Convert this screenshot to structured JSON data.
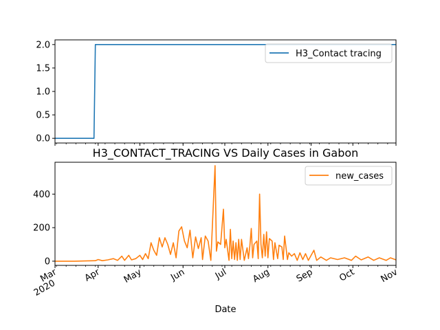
{
  "chart_data": [
    {
      "type": "line",
      "title": "",
      "xlabel": "",
      "ylabel": "",
      "ylim": [
        -0.1,
        2.1
      ],
      "yticks": [
        "0.0",
        "0.5",
        "1.0",
        "1.5",
        "2.0"
      ],
      "grid": false,
      "legend_position": "top-right",
      "colors": {
        "line": "#1f77b4"
      },
      "series": [
        {
          "name": "H3_Contact tracing",
          "step": true,
          "points": [
            {
              "x": "2020-03-01",
              "y": 0
            },
            {
              "x": "2020-03-29",
              "y": 0
            },
            {
              "x": "2020-03-30",
              "y": 2
            },
            {
              "x": "2020-11-01",
              "y": 2
            }
          ]
        }
      ]
    },
    {
      "type": "line",
      "title": "H3_CONTACT_TRACING VS Daily Cases in Gabon",
      "xlabel": "Date",
      "ylabel": "",
      "ylim": [
        -25,
        590
      ],
      "yticks": [
        "0",
        "200",
        "400"
      ],
      "grid": false,
      "legend_position": "top-right",
      "colors": {
        "line": "#ff7f0e"
      },
      "xticks": [
        {
          "label": "Mar",
          "sublabel": "2020",
          "date": "2020-03-01"
        },
        {
          "label": "Apr",
          "date": "2020-04-01"
        },
        {
          "label": "May",
          "date": "2020-05-01"
        },
        {
          "label": "Jun",
          "date": "2020-06-01"
        },
        {
          "label": "Jul",
          "date": "2020-07-01"
        },
        {
          "label": "Aug",
          "date": "2020-08-01"
        },
        {
          "label": "Sep",
          "date": "2020-09-01"
        },
        {
          "label": "Oct",
          "date": "2020-10-01"
        },
        {
          "label": "Nov",
          "date": "2020-11-01"
        }
      ],
      "series": [
        {
          "name": "new_cases",
          "points": [
            {
              "x": "2020-03-01",
              "y": 0
            },
            {
              "x": "2020-03-15",
              "y": 0
            },
            {
              "x": "2020-03-25",
              "y": 2
            },
            {
              "x": "2020-03-30",
              "y": 3
            },
            {
              "x": "2020-04-01",
              "y": 10
            },
            {
              "x": "2020-04-04",
              "y": 3
            },
            {
              "x": "2020-04-08",
              "y": 8
            },
            {
              "x": "2020-04-12",
              "y": 15
            },
            {
              "x": "2020-04-15",
              "y": 5
            },
            {
              "x": "2020-04-18",
              "y": 30
            },
            {
              "x": "2020-04-20",
              "y": 5
            },
            {
              "x": "2020-04-23",
              "y": 35
            },
            {
              "x": "2020-04-25",
              "y": 8
            },
            {
              "x": "2020-04-28",
              "y": 15
            },
            {
              "x": "2020-05-01",
              "y": 35
            },
            {
              "x": "2020-05-03",
              "y": 10
            },
            {
              "x": "2020-05-05",
              "y": 45
            },
            {
              "x": "2020-05-07",
              "y": 15
            },
            {
              "x": "2020-05-09",
              "y": 110
            },
            {
              "x": "2020-05-11",
              "y": 65
            },
            {
              "x": "2020-05-13",
              "y": 35
            },
            {
              "x": "2020-05-15",
              "y": 140
            },
            {
              "x": "2020-05-17",
              "y": 85
            },
            {
              "x": "2020-05-19",
              "y": 140
            },
            {
              "x": "2020-05-21",
              "y": 100
            },
            {
              "x": "2020-05-23",
              "y": 40
            },
            {
              "x": "2020-05-25",
              "y": 110
            },
            {
              "x": "2020-05-27",
              "y": 20
            },
            {
              "x": "2020-05-29",
              "y": 180
            },
            {
              "x": "2020-05-31",
              "y": 205
            },
            {
              "x": "2020-06-02",
              "y": 120
            },
            {
              "x": "2020-06-04",
              "y": 80
            },
            {
              "x": "2020-06-06",
              "y": 185
            },
            {
              "x": "2020-06-08",
              "y": 20
            },
            {
              "x": "2020-06-10",
              "y": 145
            },
            {
              "x": "2020-06-12",
              "y": 75
            },
            {
              "x": "2020-06-14",
              "y": 140
            },
            {
              "x": "2020-06-15",
              "y": 10
            },
            {
              "x": "2020-06-17",
              "y": 150
            },
            {
              "x": "2020-06-19",
              "y": 120
            },
            {
              "x": "2020-06-21",
              "y": 5
            },
            {
              "x": "2020-06-24",
              "y": 570
            },
            {
              "x": "2020-06-25",
              "y": 60
            },
            {
              "x": "2020-06-26",
              "y": 115
            },
            {
              "x": "2020-06-28",
              "y": 100
            },
            {
              "x": "2020-06-30",
              "y": 310
            },
            {
              "x": "2020-07-01",
              "y": 80
            },
            {
              "x": "2020-07-02",
              "y": 130
            },
            {
              "x": "2020-07-04",
              "y": 5
            },
            {
              "x": "2020-07-05",
              "y": 190
            },
            {
              "x": "2020-07-06",
              "y": 15
            },
            {
              "x": "2020-07-07",
              "y": 120
            },
            {
              "x": "2020-07-08",
              "y": 10
            },
            {
              "x": "2020-07-09",
              "y": 110
            },
            {
              "x": "2020-07-10",
              "y": 5
            },
            {
              "x": "2020-07-11",
              "y": 130
            },
            {
              "x": "2020-07-12",
              "y": 10
            },
            {
              "x": "2020-07-13",
              "y": 130
            },
            {
              "x": "2020-07-15",
              "y": 5
            },
            {
              "x": "2020-07-17",
              "y": 80
            },
            {
              "x": "2020-07-18",
              "y": 15
            },
            {
              "x": "2020-07-19",
              "y": 90
            },
            {
              "x": "2020-07-20",
              "y": 195
            },
            {
              "x": "2020-07-21",
              "y": 20
            },
            {
              "x": "2020-07-22",
              "y": 100
            },
            {
              "x": "2020-07-24",
              "y": 120
            },
            {
              "x": "2020-07-25",
              "y": 15
            },
            {
              "x": "2020-07-26",
              "y": 400
            },
            {
              "x": "2020-07-27",
              "y": 100
            },
            {
              "x": "2020-07-28",
              "y": 20
            },
            {
              "x": "2020-07-29",
              "y": 160
            },
            {
              "x": "2020-07-30",
              "y": 30
            },
            {
              "x": "2020-07-31",
              "y": 175
            },
            {
              "x": "2020-08-01",
              "y": 20
            },
            {
              "x": "2020-08-02",
              "y": 135
            },
            {
              "x": "2020-08-04",
              "y": 120
            },
            {
              "x": "2020-08-05",
              "y": 10
            },
            {
              "x": "2020-08-06",
              "y": 110
            },
            {
              "x": "2020-08-08",
              "y": 15
            },
            {
              "x": "2020-08-09",
              "y": 95
            },
            {
              "x": "2020-08-11",
              "y": 85
            },
            {
              "x": "2020-08-12",
              "y": 10
            },
            {
              "x": "2020-08-13",
              "y": 150
            },
            {
              "x": "2020-08-15",
              "y": 10
            },
            {
              "x": "2020-08-16",
              "y": 50
            },
            {
              "x": "2020-08-18",
              "y": 30
            },
            {
              "x": "2020-08-20",
              "y": 45
            },
            {
              "x": "2020-08-22",
              "y": 5
            },
            {
              "x": "2020-08-24",
              "y": 50
            },
            {
              "x": "2020-08-26",
              "y": 10
            },
            {
              "x": "2020-08-28",
              "y": 45
            },
            {
              "x": "2020-08-30",
              "y": 5
            },
            {
              "x": "2020-09-03",
              "y": 65
            },
            {
              "x": "2020-09-05",
              "y": 5
            },
            {
              "x": "2020-09-08",
              "y": 25
            },
            {
              "x": "2020-09-12",
              "y": 5
            },
            {
              "x": "2020-09-15",
              "y": 20
            },
            {
              "x": "2020-09-20",
              "y": 10
            },
            {
              "x": "2020-09-25",
              "y": 20
            },
            {
              "x": "2020-09-30",
              "y": 5
            },
            {
              "x": "2020-10-03",
              "y": 30
            },
            {
              "x": "2020-10-07",
              "y": 8
            },
            {
              "x": "2020-10-12",
              "y": 25
            },
            {
              "x": "2020-10-16",
              "y": 5
            },
            {
              "x": "2020-10-20",
              "y": 20
            },
            {
              "x": "2020-10-25",
              "y": 5
            },
            {
              "x": "2020-10-28",
              "y": 20
            },
            {
              "x": "2020-11-01",
              "y": 8
            }
          ]
        }
      ]
    }
  ]
}
